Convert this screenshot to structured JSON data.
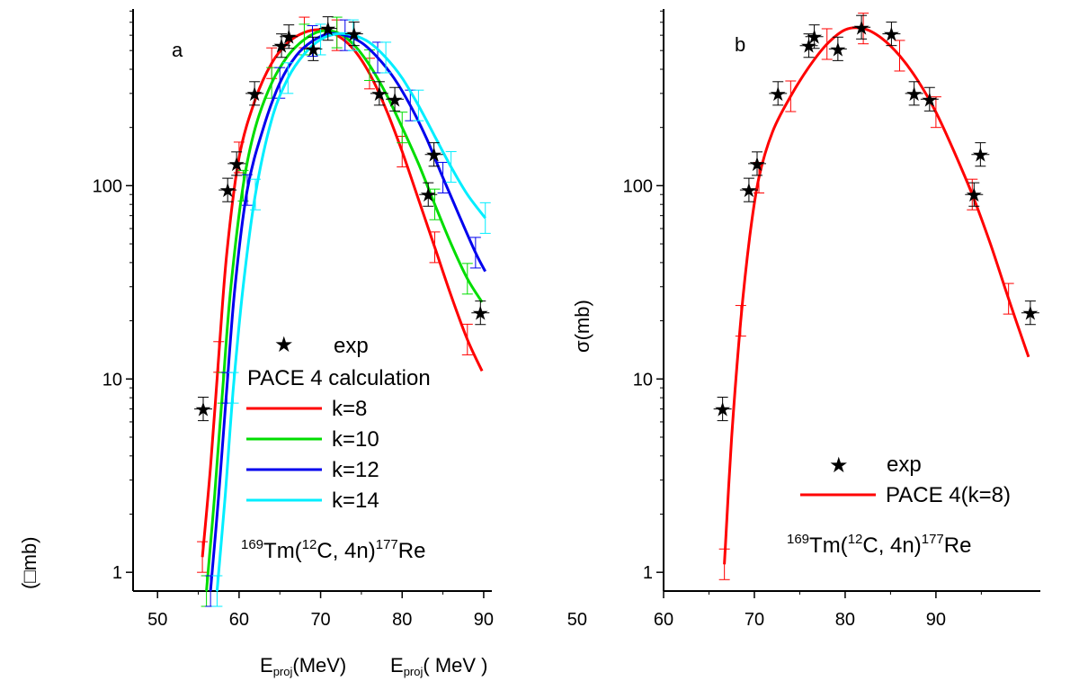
{
  "chart_data": [
    {
      "panel": "a",
      "type": "line",
      "yscale": "log",
      "xlim": [
        47,
        91
      ],
      "ylim": [
        0.8,
        820
      ],
      "x_ticks": [
        50,
        60,
        70,
        80,
        90
      ],
      "y_ticks": [
        1,
        10,
        100
      ],
      "legend_placement": "center-bottom",
      "legend": {
        "exp_label": "exp",
        "calc_title": "PACE 4 calculation",
        "entries": [
          "k=8",
          "k=10",
          "k=12",
          "k=14"
        ]
      },
      "reaction": {
        "pre": "169",
        "target": "Tm(",
        "proj": "12",
        "mid": "C, 4n)",
        "prod_sup": "177",
        "prod": "Re"
      },
      "ylabel_glyph": "(□mb)",
      "experimental": {
        "name": "exp",
        "x": [
          55.6,
          58.6,
          59.7,
          61.9,
          65.2,
          66.1,
          69.1,
          70.9,
          74.1,
          77.2,
          79.1,
          83.2,
          83.9,
          89.6
        ],
        "y": [
          7,
          95,
          130,
          300,
          530,
          590,
          510,
          650,
          610,
          300,
          280,
          90,
          145,
          22
        ]
      },
      "series": [
        {
          "name": "k=8",
          "color": "#ff0000",
          "x": [
            55.5,
            56.5,
            57.5,
            58.5,
            60,
            62,
            64,
            66,
            68,
            70,
            72,
            74,
            76,
            78,
            80,
            82,
            84,
            86,
            88,
            89.8
          ],
          "y": [
            1.2,
            3.5,
            13,
            45,
            140,
            280,
            430,
            550,
            620,
            640,
            600,
            510,
            380,
            250,
            150,
            85,
            48,
            27,
            16,
            11
          ]
        },
        {
          "name": "k=10",
          "color": "#00dd00",
          "x": [
            56,
            57,
            58,
            59,
            60.5,
            62,
            64,
            66,
            68,
            70,
            72,
            74,
            76,
            78,
            80,
            82,
            84,
            86,
            88,
            89.8
          ],
          "y": [
            0.8,
            2.5,
            9,
            30,
            100,
            200,
            340,
            470,
            570,
            630,
            620,
            540,
            420,
            300,
            200,
            130,
            80,
            50,
            33,
            25
          ]
        },
        {
          "name": "k=12",
          "color": "#0000ee",
          "x": [
            56.5,
            57.5,
            58.5,
            59.5,
            61,
            63,
            65,
            67,
            69,
            71,
            73,
            75,
            77,
            79,
            81,
            83,
            85,
            87,
            89,
            90.2
          ],
          "y": [
            0.8,
            2.5,
            9,
            30,
            95,
            200,
            340,
            470,
            560,
            610,
            600,
            550,
            460,
            360,
            260,
            175,
            110,
            70,
            45,
            36
          ]
        },
        {
          "name": "k=14",
          "color": "#00eeff",
          "x": [
            57.3,
            58.3,
            59.3,
            60.5,
            62,
            64,
            66,
            68,
            70,
            72,
            74,
            76,
            78,
            80,
            82,
            84,
            86,
            88,
            90.2
          ],
          "y": [
            0.8,
            2.5,
            9,
            30,
            90,
            220,
            360,
            480,
            570,
            610,
            600,
            550,
            460,
            360,
            260,
            180,
            125,
            90,
            68
          ]
        }
      ]
    },
    {
      "panel": "b",
      "type": "line",
      "yscale": "log",
      "xlim": [
        60,
        101.5
      ],
      "ylim": [
        0.8,
        820
      ],
      "x_ticks": [
        60,
        70,
        80,
        90
      ],
      "y_ticks": [
        1,
        10,
        100
      ],
      "ylabel": "σ(mb)",
      "legend_placement": "bottom-right",
      "legend": {
        "exp_label": "exp",
        "entries": [
          "PACE 4(k=8)"
        ]
      },
      "reaction": {
        "pre": "169",
        "target": "Tm(",
        "proj": "12",
        "mid": "C, 4n)",
        "prod_sup": "177",
        "prod": "Re"
      },
      "experimental": {
        "name": "exp",
        "x": [
          66.5,
          69.4,
          70.3,
          72.6,
          76,
          76.6,
          79.2,
          81.8,
          85.1,
          87.6,
          89.3,
          94.2,
          94.9,
          100.4
        ],
        "y": [
          7,
          95,
          130,
          300,
          530,
          590,
          510,
          660,
          610,
          300,
          280,
          90,
          145,
          22
        ]
      },
      "series": [
        {
          "name": "PACE 4(k=8)",
          "color": "#ff0000",
          "x": [
            66.7,
            67.5,
            68.5,
            69.5,
            70.5,
            72,
            74,
            76,
            78,
            80,
            82,
            84,
            86,
            88,
            90,
            92,
            94,
            96,
            98,
            100.2
          ],
          "y": [
            1.1,
            5,
            20,
            55,
            110,
            190,
            290,
            410,
            540,
            640,
            650,
            580,
            470,
            350,
            240,
            150,
            90,
            50,
            26,
            13
          ]
        }
      ]
    }
  ],
  "xlabels": {
    "label1_main": "E",
    "label1_sub": "proj",
    "label1_tail": "(MeV)",
    "label2_main": "E",
    "label2_sub": "proj",
    "label2_tail": "( MeV )"
  },
  "stray_tick_label": "50"
}
